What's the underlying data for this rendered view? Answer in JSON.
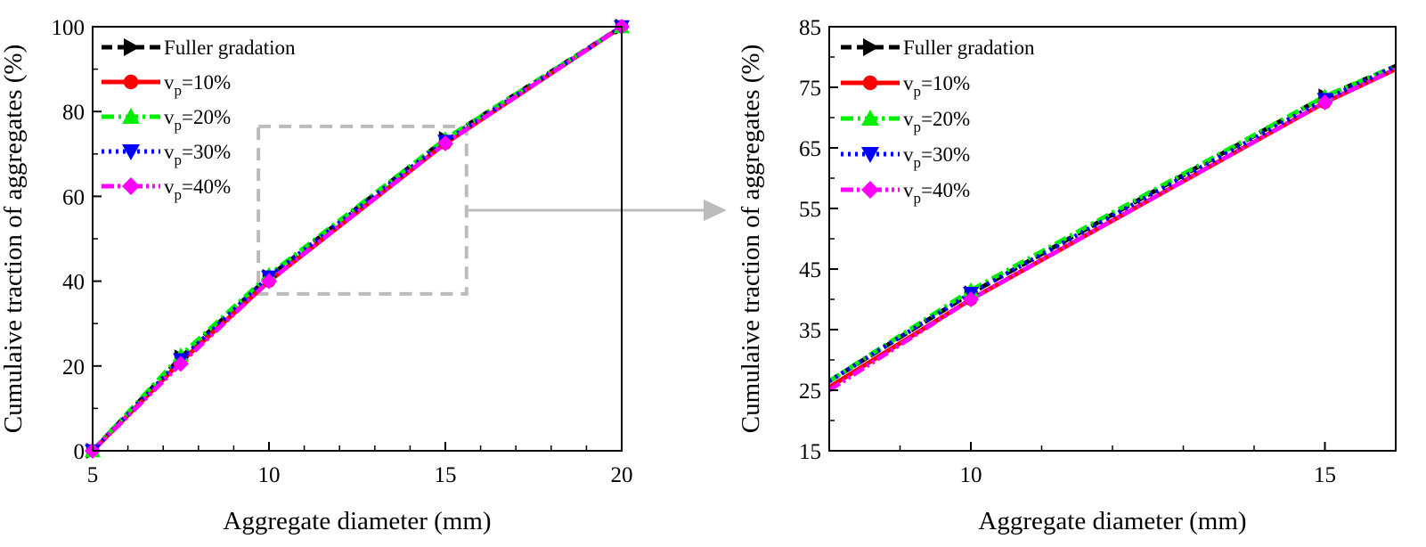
{
  "chart_data": [
    {
      "type": "line",
      "xlabel": "Aggregate diameter (mm)",
      "ylabel": "Cumulaive traction of aggregates (%)",
      "xlim": [
        5,
        20
      ],
      "ylim": [
        0,
        100
      ],
      "xticks": [
        "5",
        "10",
        "15",
        "20"
      ],
      "yticks": [
        "0",
        "20",
        "40",
        "60",
        "80",
        "100"
      ],
      "legend_position": "top-left",
      "series": [
        {
          "name": "Fuller gradation",
          "legend_main": "Fuller gradation",
          "legend_sub": "",
          "legend_after": "",
          "color": "#000000",
          "marker": "triangle-right",
          "dash": "dash",
          "x": [
            5,
            7.5,
            10,
            15,
            20
          ],
          "y": [
            0,
            22,
            41,
            73.5,
            100
          ]
        },
        {
          "name": "vp=10%",
          "legend_main": "v",
          "legend_sub": "p",
          "legend_after": "=10%",
          "color": "#ff0000",
          "marker": "circle",
          "dash": "solid",
          "x": [
            5,
            7.5,
            10,
            15,
            20
          ],
          "y": [
            0,
            21,
            40,
            72.5,
            100
          ]
        },
        {
          "name": "vp=20%",
          "legend_main": "v",
          "legend_sub": "p",
          "legend_after": "=20%",
          "color": "#00ee00",
          "marker": "triangle-up",
          "dash": "dashdot",
          "x": [
            5,
            7.5,
            10,
            15,
            20
          ],
          "y": [
            0,
            22.5,
            41.5,
            73.5,
            100
          ]
        },
        {
          "name": "vp=30%",
          "legend_main": "v",
          "legend_sub": "p",
          "legend_after": "=30%",
          "color": "#0000ff",
          "marker": "triangle-down",
          "dash": "dot",
          "x": [
            5,
            7.5,
            10,
            15,
            20
          ],
          "y": [
            0,
            21.5,
            41,
            73,
            100
          ]
        },
        {
          "name": "vp=40%",
          "legend_main": "v",
          "legend_sub": "p",
          "legend_after": "=40%",
          "color": "#ff00ff",
          "marker": "diamond",
          "dash": "dashdotdot",
          "x": [
            5,
            7.5,
            10,
            15,
            20
          ],
          "y": [
            0,
            20.5,
            40,
            72.5,
            100
          ]
        }
      ],
      "zoom_region": {
        "x": [
          9.7,
          15.6
        ],
        "y": [
          37,
          76.5
        ]
      }
    },
    {
      "type": "line",
      "xlabel": "Aggregate diameter (mm)",
      "ylabel": "Cumulaive traction of aggregates (%)",
      "xlim": [
        8,
        16
      ],
      "ylim": [
        15,
        85
      ],
      "xticks": [
        "10",
        "15"
      ],
      "yticks": [
        "15",
        "25",
        "35",
        "45",
        "55",
        "65",
        "75",
        "85"
      ],
      "legend_position": "top-left",
      "series": [
        {
          "name": "Fuller gradation",
          "legend_main": "Fuller gradation",
          "legend_sub": "",
          "legend_after": "",
          "color": "#000000",
          "marker": "triangle-right",
          "dash": "dash",
          "x": [
            8,
            10,
            15,
            16
          ],
          "y": [
            26.5,
            41,
            73.5,
            78.5
          ]
        },
        {
          "name": "vp=10%",
          "legend_main": "v",
          "legend_sub": "p",
          "legend_after": "=10%",
          "color": "#ff0000",
          "marker": "circle",
          "dash": "solid",
          "x": [
            8,
            10,
            15,
            16
          ],
          "y": [
            25.5,
            40,
            72.5,
            78
          ]
        },
        {
          "name": "vp=20%",
          "legend_main": "v",
          "legend_sub": "p",
          "legend_after": "=20%",
          "color": "#00ee00",
          "marker": "triangle-up",
          "dash": "dashdot",
          "x": [
            8,
            10,
            15,
            16
          ],
          "y": [
            26.5,
            41.5,
            73.5,
            78.5
          ]
        },
        {
          "name": "vp=30%",
          "legend_main": "v",
          "legend_sub": "p",
          "legend_after": "=30%",
          "color": "#0000ff",
          "marker": "triangle-down",
          "dash": "dot",
          "x": [
            8,
            10,
            15,
            16
          ],
          "y": [
            26.5,
            41,
            73,
            78.5
          ]
        },
        {
          "name": "vp=40%",
          "legend_main": "v",
          "legend_sub": "p",
          "legend_after": "=40%",
          "color": "#ff00ff",
          "marker": "diamond",
          "dash": "dashdotdot",
          "x": [
            8,
            10,
            15,
            16
          ],
          "y": [
            25,
            40,
            72.5,
            78
          ]
        }
      ]
    }
  ],
  "colors": {
    "axis": "#000000",
    "zoom_box": "#bbbbbb",
    "arrow": "#bbbbbb"
  }
}
